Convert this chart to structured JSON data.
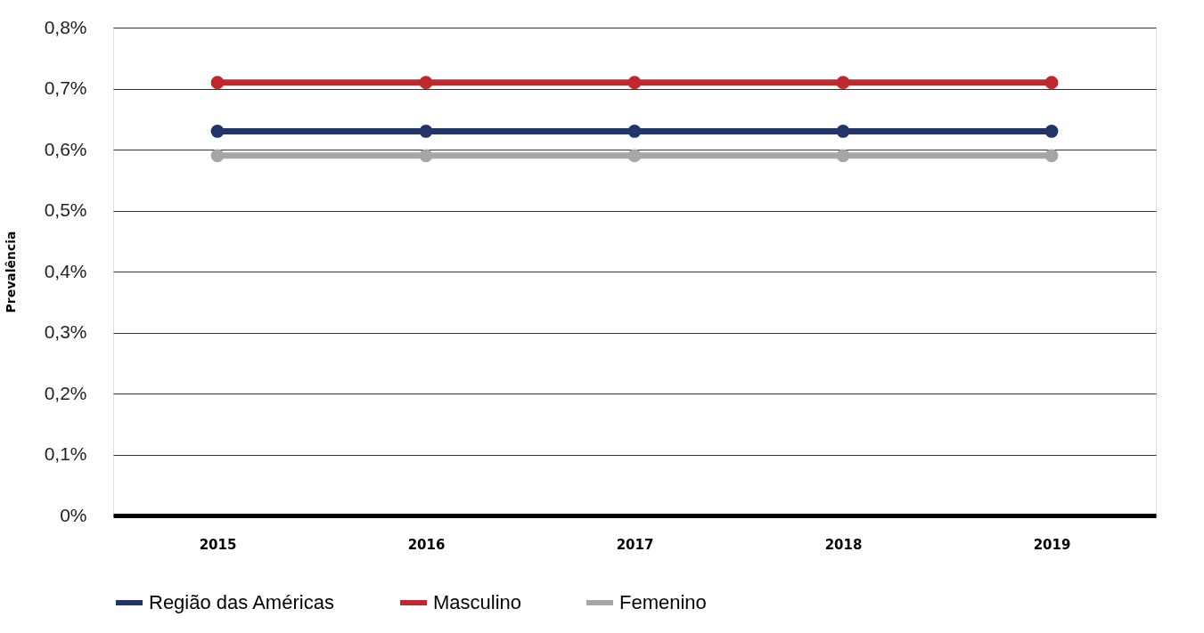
{
  "chart_data": {
    "type": "line",
    "ylabel": "Prevalência",
    "categories": [
      "2015",
      "2016",
      "2017",
      "2018",
      "2019"
    ],
    "series": [
      {
        "name": "Região das Américas",
        "color": "#22356b",
        "values": [
          0.63,
          0.63,
          0.63,
          0.63,
          0.63
        ]
      },
      {
        "name": "Masculino",
        "color": "#c1272d",
        "values": [
          0.71,
          0.71,
          0.71,
          0.71,
          0.71
        ]
      },
      {
        "name": "Femenino",
        "color": "#a6a6a6",
        "values": [
          0.59,
          0.59,
          0.59,
          0.59,
          0.59
        ]
      }
    ],
    "ylim": [
      0,
      0.8
    ],
    "yticks": [
      {
        "value": 0,
        "label": "0%"
      },
      {
        "value": 0.1,
        "label": "0,1%"
      },
      {
        "value": 0.2,
        "label": "0,2%"
      },
      {
        "value": 0.3,
        "label": "0,3%"
      },
      {
        "value": 0.4,
        "label": "0,4%"
      },
      {
        "value": 0.5,
        "label": "0,5%"
      },
      {
        "value": 0.6,
        "label": "0,6%"
      },
      {
        "value": 0.7,
        "label": "0,7%"
      },
      {
        "value": 0.8,
        "label": "0,8%"
      }
    ],
    "grid": "y",
    "legend": "bottom",
    "marker": "circle",
    "line_style": "solid"
  }
}
